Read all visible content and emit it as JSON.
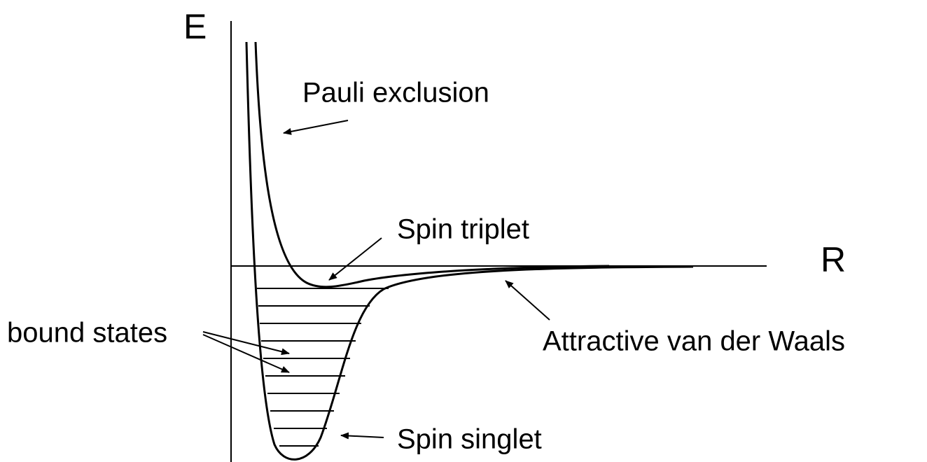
{
  "axes": {
    "y_label": "E",
    "x_label": "R"
  },
  "annotations": {
    "pauli": "Pauli exclusion",
    "triplet": "Spin triplet",
    "vdw": "Attractive van der Waals",
    "bound": "bound states",
    "singlet": "Spin singlet"
  }
}
